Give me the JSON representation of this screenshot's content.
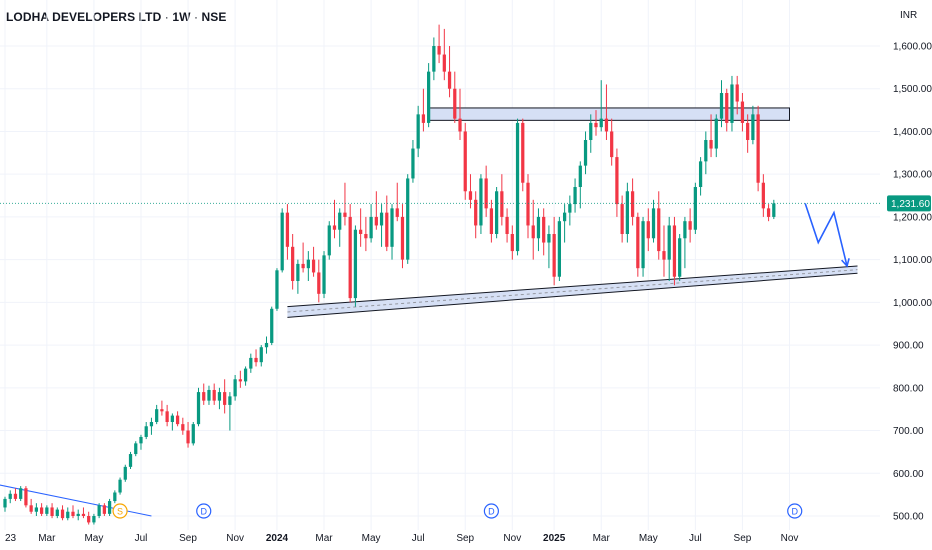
{
  "header": {
    "symbol": "LODHA DEVELOPERS LTD",
    "interval": "1W",
    "exchange": "NSE",
    "currency": "INR"
  },
  "colors": {
    "up": "#089981",
    "down": "#F23645",
    "zone_fill": "#d6e0f5",
    "zone_stroke": "#131722",
    "arrow": "#2962ff",
    "trendline": "#2962ff",
    "price_tag": "#089981",
    "grid": "#f0f3fa"
  },
  "chart_data": {
    "type": "candlestick",
    "title": "LODHA DEVELOPERS LTD · 1W · NSE",
    "y_axis": {
      "unit": "INR",
      "ticks": [
        "1,600.00",
        "1,500.00",
        "1,400.00",
        "1,300.00",
        "1,200.00",
        "1,100.00",
        "1,000.00",
        "900.00",
        "800.00",
        "700.00",
        "600.00",
        "500.00"
      ],
      "tick_values": [
        1600,
        1500,
        1400,
        1300,
        1200,
        1100,
        1000,
        900,
        800,
        700,
        600,
        500
      ],
      "range": [
        480,
        1670
      ]
    },
    "x_axis": {
      "ticks": [
        {
          "label": "23",
          "index": 0,
          "bold": false
        },
        {
          "label": "Mar",
          "index": 8,
          "bold": false
        },
        {
          "label": "May",
          "index": 17,
          "bold": false
        },
        {
          "label": "Jul",
          "index": 26,
          "bold": false
        },
        {
          "label": "Sep",
          "index": 35,
          "bold": false
        },
        {
          "label": "Nov",
          "index": 44,
          "bold": false
        },
        {
          "label": "2024",
          "index": 52,
          "bold": true
        },
        {
          "label": "Mar",
          "index": 61,
          "bold": false
        },
        {
          "label": "May",
          "index": 70,
          "bold": false
        },
        {
          "label": "Jul",
          "index": 79,
          "bold": false
        },
        {
          "label": "Sep",
          "index": 88,
          "bold": false
        },
        {
          "label": "Nov",
          "index": 97,
          "bold": false
        },
        {
          "label": "2025",
          "index": 105,
          "bold": true
        },
        {
          "label": "Mar",
          "index": 114,
          "bold": false
        },
        {
          "label": "May",
          "index": 123,
          "bold": false
        },
        {
          "label": "Jul",
          "index": 132,
          "bold": false
        },
        {
          "label": "Sep",
          "index": 141,
          "bold": false
        },
        {
          "label": "Nov",
          "index": 150,
          "bold": false
        }
      ]
    },
    "last_price": 1231.6,
    "last_price_label": "1,231.60",
    "candles": [
      [
        520,
        545,
        510,
        540
      ],
      [
        540,
        560,
        530,
        552
      ],
      [
        552,
        565,
        535,
        540
      ],
      [
        540,
        570,
        535,
        565
      ],
      [
        565,
        570,
        520,
        525
      ],
      [
        525,
        540,
        505,
        510
      ],
      [
        510,
        530,
        500,
        520
      ],
      [
        520,
        530,
        500,
        505
      ],
      [
        505,
        525,
        500,
        520
      ],
      [
        520,
        530,
        495,
        500
      ],
      [
        500,
        520,
        495,
        515
      ],
      [
        515,
        525,
        490,
        495
      ],
      [
        495,
        520,
        490,
        510
      ],
      [
        510,
        525,
        495,
        500
      ],
      [
        500,
        515,
        490,
        505
      ],
      [
        505,
        520,
        495,
        500
      ],
      [
        500,
        510,
        480,
        485
      ],
      [
        485,
        505,
        480,
        500
      ],
      [
        500,
        530,
        495,
        525
      ],
      [
        525,
        530,
        500,
        505
      ],
      [
        505,
        540,
        500,
        535
      ],
      [
        535,
        560,
        530,
        555
      ],
      [
        555,
        590,
        550,
        585
      ],
      [
        585,
        620,
        580,
        615
      ],
      [
        615,
        650,
        610,
        645
      ],
      [
        645,
        675,
        640,
        670
      ],
      [
        670,
        690,
        655,
        685
      ],
      [
        685,
        720,
        680,
        710
      ],
      [
        710,
        730,
        690,
        720
      ],
      [
        720,
        760,
        715,
        750
      ],
      [
        750,
        770,
        735,
        745
      ],
      [
        745,
        760,
        710,
        720
      ],
      [
        720,
        740,
        700,
        735
      ],
      [
        735,
        745,
        710,
        715
      ],
      [
        715,
        730,
        690,
        700
      ],
      [
        700,
        720,
        660,
        670
      ],
      [
        670,
        720,
        665,
        715
      ],
      [
        715,
        800,
        710,
        790
      ],
      [
        790,
        810,
        760,
        770
      ],
      [
        770,
        805,
        760,
        795
      ],
      [
        795,
        810,
        760,
        770
      ],
      [
        770,
        800,
        750,
        790
      ],
      [
        790,
        820,
        740,
        760
      ],
      [
        760,
        790,
        700,
        780
      ],
      [
        780,
        830,
        770,
        820
      ],
      [
        820,
        840,
        800,
        815
      ],
      [
        815,
        850,
        805,
        845
      ],
      [
        845,
        880,
        835,
        870
      ],
      [
        870,
        890,
        850,
        860
      ],
      [
        860,
        900,
        850,
        895
      ],
      [
        895,
        920,
        880,
        905
      ],
      [
        905,
        990,
        900,
        985
      ],
      [
        985,
        1080,
        980,
        1075
      ],
      [
        1075,
        1220,
        1070,
        1210
      ],
      [
        1210,
        1230,
        1100,
        1130
      ],
      [
        1130,
        1160,
        1030,
        1050
      ],
      [
        1050,
        1100,
        1020,
        1090
      ],
      [
        1090,
        1140,
        1070,
        1080
      ],
      [
        1080,
        1120,
        1050,
        1100
      ],
      [
        1100,
        1130,
        1060,
        1070
      ],
      [
        1070,
        1100,
        1000,
        1020
      ],
      [
        1020,
        1120,
        1010,
        1110
      ],
      [
        1110,
        1190,
        1100,
        1180
      ],
      [
        1180,
        1240,
        1150,
        1170
      ],
      [
        1170,
        1220,
        1130,
        1210
      ],
      [
        1210,
        1280,
        1180,
        1200
      ],
      [
        1200,
        1230,
        1000,
        1010
      ],
      [
        1010,
        1180,
        990,
        1170
      ],
      [
        1170,
        1220,
        1130,
        1160
      ],
      [
        1160,
        1200,
        1120,
        1150
      ],
      [
        1150,
        1230,
        1140,
        1200
      ],
      [
        1200,
        1260,
        1170,
        1180
      ],
      [
        1180,
        1230,
        1130,
        1210
      ],
      [
        1210,
        1250,
        1120,
        1130
      ],
      [
        1130,
        1230,
        1100,
        1220
      ],
      [
        1220,
        1280,
        1190,
        1200
      ],
      [
        1200,
        1230,
        1080,
        1100
      ],
      [
        1100,
        1300,
        1090,
        1290
      ],
      [
        1290,
        1380,
        1280,
        1360
      ],
      [
        1360,
        1460,
        1340,
        1440
      ],
      [
        1440,
        1500,
        1400,
        1420
      ],
      [
        1420,
        1560,
        1410,
        1540
      ],
      [
        1540,
        1620,
        1520,
        1600
      ],
      [
        1600,
        1650,
        1560,
        1580
      ],
      [
        1580,
        1640,
        1520,
        1540
      ],
      [
        1540,
        1600,
        1480,
        1500
      ],
      [
        1500,
        1540,
        1420,
        1430
      ],
      [
        1430,
        1500,
        1380,
        1400
      ],
      [
        1400,
        1420,
        1240,
        1260
      ],
      [
        1260,
        1300,
        1220,
        1240
      ],
      [
        1240,
        1260,
        1150,
        1180
      ],
      [
        1180,
        1300,
        1160,
        1290
      ],
      [
        1290,
        1320,
        1200,
        1220
      ],
      [
        1220,
        1240,
        1140,
        1160
      ],
      [
        1160,
        1270,
        1150,
        1260
      ],
      [
        1260,
        1300,
        1180,
        1200
      ],
      [
        1200,
        1220,
        1140,
        1160
      ],
      [
        1160,
        1180,
        1100,
        1120
      ],
      [
        1120,
        1430,
        1110,
        1420
      ],
      [
        1420,
        1430,
        1260,
        1280
      ],
      [
        1280,
        1300,
        1150,
        1180
      ],
      [
        1180,
        1240,
        1100,
        1150
      ],
      [
        1150,
        1220,
        1120,
        1200
      ],
      [
        1200,
        1220,
        1110,
        1140
      ],
      [
        1140,
        1180,
        1080,
        1160
      ],
      [
        1160,
        1200,
        1040,
        1060
      ],
      [
        1060,
        1200,
        1050,
        1190
      ],
      [
        1190,
        1230,
        1140,
        1210
      ],
      [
        1210,
        1250,
        1180,
        1230
      ],
      [
        1230,
        1290,
        1210,
        1270
      ],
      [
        1270,
        1330,
        1220,
        1320
      ],
      [
        1320,
        1400,
        1300,
        1380
      ],
      [
        1380,
        1440,
        1350,
        1420
      ],
      [
        1420,
        1450,
        1390,
        1410
      ],
      [
        1410,
        1520,
        1400,
        1430
      ],
      [
        1430,
        1510,
        1380,
        1400
      ],
      [
        1400,
        1430,
        1320,
        1340
      ],
      [
        1340,
        1360,
        1200,
        1230
      ],
      [
        1230,
        1250,
        1140,
        1160
      ],
      [
        1160,
        1280,
        1140,
        1260
      ],
      [
        1260,
        1290,
        1180,
        1200
      ],
      [
        1200,
        1210,
        1060,
        1080
      ],
      [
        1080,
        1200,
        1060,
        1190
      ],
      [
        1190,
        1220,
        1120,
        1150
      ],
      [
        1150,
        1240,
        1140,
        1220
      ],
      [
        1220,
        1260,
        1100,
        1120
      ],
      [
        1120,
        1180,
        1060,
        1100
      ],
      [
        1100,
        1200,
        1050,
        1180
      ],
      [
        1180,
        1200,
        1040,
        1060
      ],
      [
        1060,
        1160,
        1050,
        1150
      ],
      [
        1150,
        1200,
        1080,
        1190
      ],
      [
        1190,
        1220,
        1140,
        1170
      ],
      [
        1170,
        1280,
        1160,
        1270
      ],
      [
        1270,
        1340,
        1250,
        1330
      ],
      [
        1330,
        1400,
        1300,
        1380
      ],
      [
        1380,
        1440,
        1340,
        1360
      ],
      [
        1360,
        1440,
        1340,
        1430
      ],
      [
        1430,
        1520,
        1410,
        1490
      ],
      [
        1490,
        1500,
        1400,
        1420
      ],
      [
        1420,
        1530,
        1400,
        1510
      ],
      [
        1510,
        1530,
        1440,
        1470
      ],
      [
        1470,
        1490,
        1400,
        1420
      ],
      [
        1420,
        1440,
        1350,
        1380
      ],
      [
        1380,
        1460,
        1370,
        1440
      ],
      [
        1440,
        1460,
        1260,
        1280
      ],
      [
        1280,
        1300,
        1200,
        1220
      ],
      [
        1220,
        1230,
        1190,
        1200
      ],
      [
        1200,
        1240,
        1195,
        1231.6
      ]
    ],
    "resistance_zone": {
      "from_index": 81,
      "to_index": 150,
      "low": 1426,
      "high": 1455
    },
    "support_channel": {
      "from_index": 54,
      "to_index": 163,
      "start_low": 965,
      "start_high": 990,
      "end_low": 1068,
      "end_high": 1085
    },
    "old_trendline": {
      "from_index": -2,
      "to_index": 28,
      "start": 575,
      "end": 500
    },
    "projection": [
      [
        153,
        1231.6
      ],
      [
        155.5,
        1140
      ],
      [
        158.5,
        1210
      ],
      [
        161,
        1085
      ]
    ],
    "event_markers": [
      {
        "label": "S",
        "index": 22
      },
      {
        "label": "D",
        "index": 38
      },
      {
        "label": "D",
        "index": 93
      },
      {
        "label": "D",
        "index": 151
      }
    ]
  }
}
